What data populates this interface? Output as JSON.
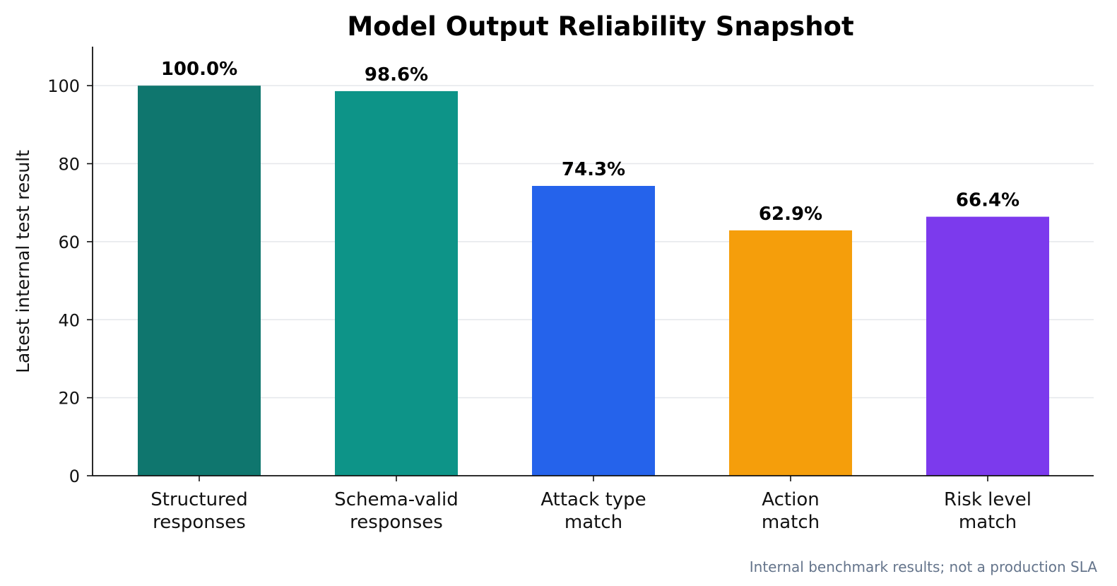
{
  "chart_data": {
    "type": "bar",
    "title": "Model Output Reliability Snapshot",
    "ylabel": "Latest internal test result",
    "xlabel": "",
    "categories": [
      [
        "Structured",
        "responses"
      ],
      [
        "Schema-valid",
        "responses"
      ],
      [
        "Attack type",
        "match"
      ],
      [
        "Action",
        "match"
      ],
      [
        "Risk level",
        "match"
      ]
    ],
    "values": [
      100.0,
      98.6,
      74.3,
      62.9,
      66.4
    ],
    "data_labels": [
      "100.0%",
      "98.6%",
      "74.3%",
      "62.9%",
      "66.4%"
    ],
    "colors": [
      "#0f766e",
      "#0d9488",
      "#2563eb",
      "#f59e0b",
      "#7c3aed"
    ],
    "ylim": [
      0,
      110
    ],
    "yticks": [
      0,
      20,
      40,
      60,
      80,
      100
    ],
    "grid": true,
    "legend": "none"
  },
  "footnote": "Internal benchmark results; not a production SLA"
}
